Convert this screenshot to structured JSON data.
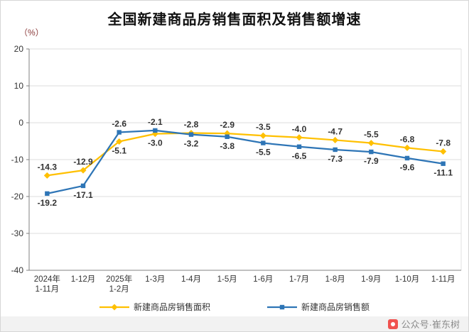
{
  "title": "全国新建商品房销售面积及销售额增速",
  "unit_label": "（%）",
  "watermark": {
    "text": "公众号·崔东树"
  },
  "chart_data": {
    "type": "line",
    "title": "全国新建商品房销售面积及销售额增速",
    "ylabel": "（%）",
    "ylim": [
      -40,
      20
    ],
    "yticks": [
      20,
      10,
      0,
      -10,
      -20,
      -30,
      -40
    ],
    "grid": true,
    "legend_position": "bottom",
    "categories": [
      {
        "line1": "2024年",
        "line2": "1-11月"
      },
      {
        "line1": "1-12月"
      },
      {
        "line1": "2025年",
        "line2": "1-2月"
      },
      {
        "line1": "1-3月"
      },
      {
        "line1": "1-4月"
      },
      {
        "line1": "1-5月"
      },
      {
        "line1": "1-6月"
      },
      {
        "line1": "1-7月"
      },
      {
        "line1": "1-8月"
      },
      {
        "line1": "1-9月"
      },
      {
        "line1": "1-10月"
      },
      {
        "line1": "1-11月"
      }
    ],
    "series": [
      {
        "name": "新建商品房销售面积",
        "color": "#FFC000",
        "marker": "diamond",
        "values": [
          -14.3,
          -12.9,
          -5.1,
          -3.0,
          -2.8,
          -2.9,
          -3.5,
          -4.0,
          -4.7,
          -5.5,
          -6.8,
          -7.8
        ],
        "label_pos": [
          "above",
          "above",
          "below",
          "below",
          "above",
          "above",
          "above",
          "above",
          "above",
          "above",
          "above",
          "above"
        ]
      },
      {
        "name": "新建商品房销售额",
        "color": "#2E75B6",
        "marker": "square",
        "values": [
          -19.2,
          -17.1,
          -2.6,
          -2.1,
          -3.2,
          -3.8,
          -5.5,
          -6.5,
          -7.3,
          -7.9,
          -9.6,
          -11.1
        ],
        "label_pos": [
          "below",
          "below",
          "above",
          "above",
          "below",
          "below",
          "below",
          "below",
          "below",
          "below",
          "below",
          "below"
        ]
      }
    ]
  }
}
